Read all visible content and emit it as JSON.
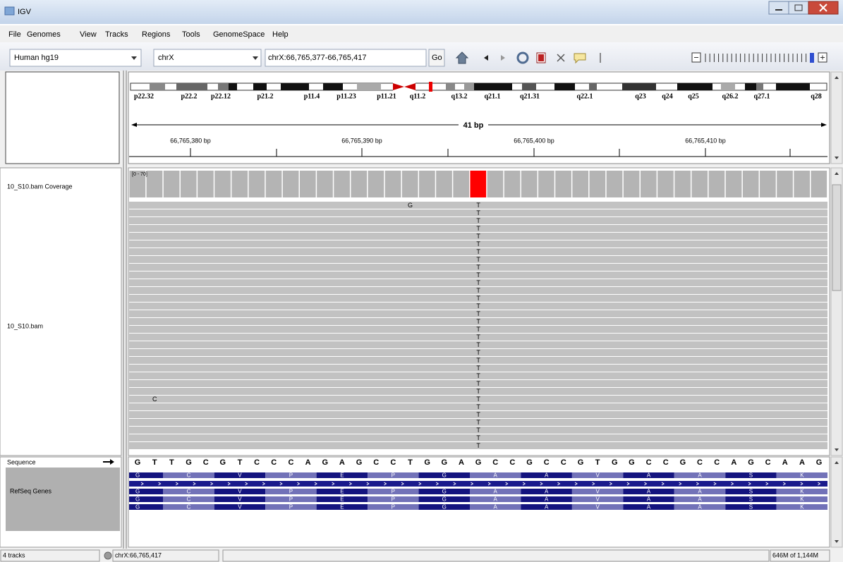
{
  "window": {
    "title": "IGV"
  },
  "menu": [
    "File",
    "Genomes",
    "View",
    "Tracks",
    "Regions",
    "Tools",
    "GenomeSpace",
    "Help"
  ],
  "toolbar": {
    "genome": "Human hg19",
    "chromosome": "chrX",
    "locus": "chrX:66,765,377-66,765,417",
    "go": "Go"
  },
  "ideogram": {
    "bands": [
      "p22.32",
      "p22.2",
      "p22.12",
      "p21.2",
      "p11.4",
      "p11.23",
      "p11.21",
      "q11.2",
      "q13.2",
      "q21.1",
      "q21.31",
      "q22.1",
      "q23",
      "q24",
      "q25",
      "q26.2",
      "q27.1",
      "q28"
    ]
  },
  "ruler": {
    "span": "41 bp",
    "ticks": [
      "66,765,380 bp",
      "66,765,390 bp",
      "66,765,400 bp",
      "66,765,410 bp"
    ]
  },
  "tracks": {
    "coverage": {
      "name": "10_S10.bam Coverage",
      "range": "[0 - 70]"
    },
    "alignments": {
      "name": "10_S10.bam",
      "variant_base": "T",
      "mismatches": [
        "G",
        "C"
      ]
    },
    "sequence": {
      "name": "Sequence",
      "bases": [
        "G",
        "T",
        "T",
        "G",
        "C",
        "G",
        "T",
        "C",
        "C",
        "C",
        "A",
        "G",
        "A",
        "G",
        "C",
        "C",
        "T",
        "G",
        "G",
        "A",
        "G",
        "C",
        "C",
        "G",
        "C",
        "C",
        "G",
        "T",
        "G",
        "G",
        "C",
        "C",
        "G",
        "C",
        "C",
        "A",
        "G",
        "C",
        "A",
        "A",
        "G"
      ]
    },
    "genes": {
      "name": "RefSeq Genes",
      "amino_acids": [
        "G",
        "C",
        "V",
        "P",
        "E",
        "P",
        "G",
        "A",
        "A",
        "V",
        "A",
        "A",
        "S",
        "K"
      ]
    }
  },
  "status": {
    "tracks": "4 tracks",
    "position": "chrX:66,765,417",
    "memory": "646M of 1,144M"
  }
}
